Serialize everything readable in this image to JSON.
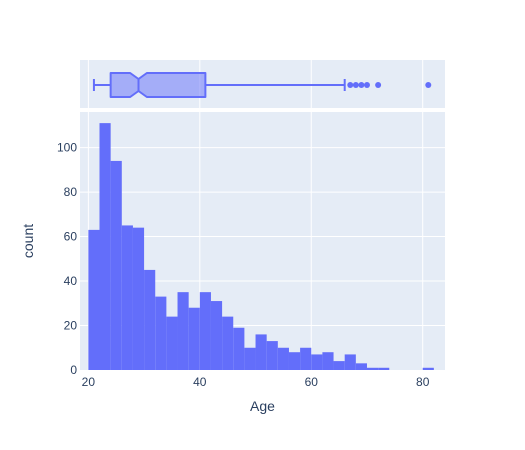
{
  "chart_data": [
    {
      "type": "box",
      "orientation": "horizontal",
      "notched": true,
      "x_axis": "Age",
      "min_whisker": 21,
      "q1": 24,
      "median": 29,
      "notch_range": [
        27.5,
        30.5
      ],
      "q3": 41,
      "max_whisker": 66,
      "outliers": [
        67,
        68,
        69,
        70,
        72,
        81
      ],
      "color": "#636efa",
      "fill": "rgba(99,110,250,0.5)"
    },
    {
      "type": "bar",
      "subtype": "histogram",
      "xlabel": "Age",
      "ylabel": "count",
      "xlim": [
        18.5,
        84
      ],
      "ylim": [
        0,
        116
      ],
      "x_ticks": [
        20,
        40,
        60,
        80
      ],
      "y_ticks": [
        0,
        20,
        40,
        60,
        80,
        100
      ],
      "bin_width": 2,
      "bins": [
        {
          "x0": 20,
          "x1": 22,
          "count": 63
        },
        {
          "x0": 22,
          "x1": 24,
          "count": 111
        },
        {
          "x0": 24,
          "x1": 26,
          "count": 94
        },
        {
          "x0": 26,
          "x1": 28,
          "count": 65
        },
        {
          "x0": 28,
          "x1": 30,
          "count": 64
        },
        {
          "x0": 30,
          "x1": 32,
          "count": 45
        },
        {
          "x0": 32,
          "x1": 34,
          "count": 33
        },
        {
          "x0": 34,
          "x1": 36,
          "count": 24
        },
        {
          "x0": 36,
          "x1": 38,
          "count": 35
        },
        {
          "x0": 38,
          "x1": 40,
          "count": 28
        },
        {
          "x0": 40,
          "x1": 42,
          "count": 35
        },
        {
          "x0": 42,
          "x1": 44,
          "count": 31
        },
        {
          "x0": 44,
          "x1": 46,
          "count": 24
        },
        {
          "x0": 46,
          "x1": 48,
          "count": 19
        },
        {
          "x0": 48,
          "x1": 50,
          "count": 10
        },
        {
          "x0": 50,
          "x1": 52,
          "count": 16
        },
        {
          "x0": 52,
          "x1": 54,
          "count": 13
        },
        {
          "x0": 54,
          "x1": 56,
          "count": 10
        },
        {
          "x0": 56,
          "x1": 58,
          "count": 8
        },
        {
          "x0": 58,
          "x1": 60,
          "count": 10
        },
        {
          "x0": 60,
          "x1": 62,
          "count": 7
        },
        {
          "x0": 62,
          "x1": 64,
          "count": 8
        },
        {
          "x0": 64,
          "x1": 66,
          "count": 4
        },
        {
          "x0": 66,
          "x1": 68,
          "count": 7
        },
        {
          "x0": 68,
          "x1": 70,
          "count": 3
        },
        {
          "x0": 70,
          "x1": 72,
          "count": 1
        },
        {
          "x0": 72,
          "x1": 74,
          "count": 1
        },
        {
          "x0": 80,
          "x1": 82,
          "count": 1
        }
      ],
      "color": "#636efa",
      "plot_bg": "#e5ecf6",
      "grid_color": "#ffffff",
      "grid": true
    }
  ]
}
